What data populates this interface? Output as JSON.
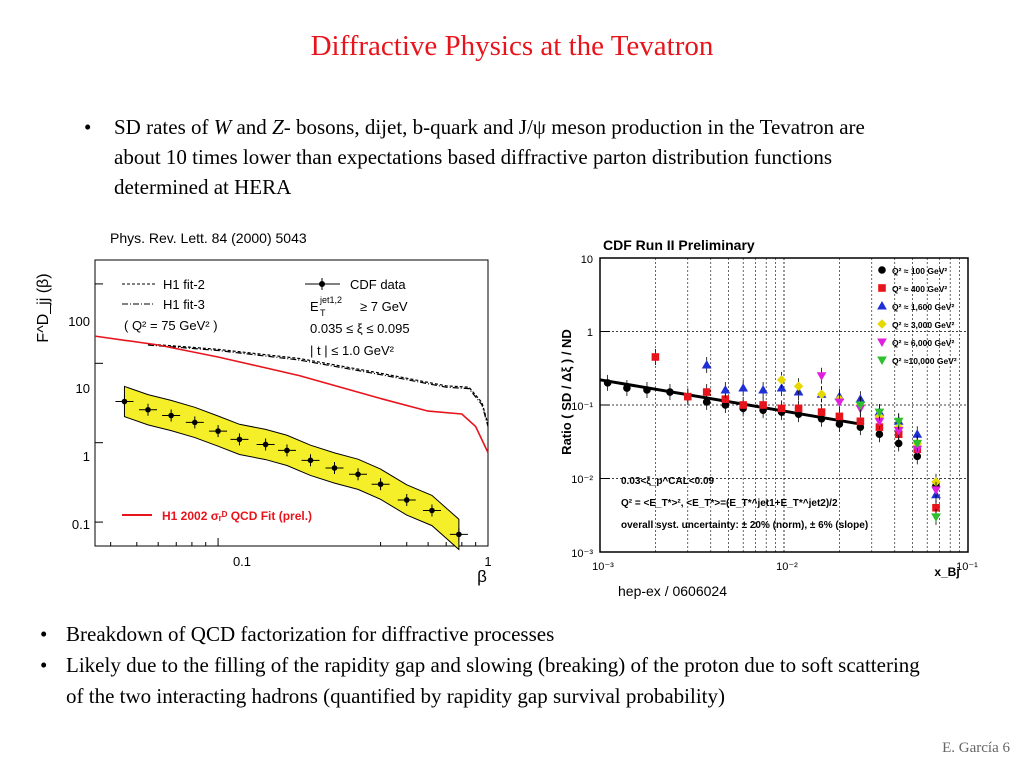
{
  "slide": {
    "title": "Diffractive Physics at the Tevatron",
    "bullet_top_1": {
      "pre": "SD rates of ",
      "w": "W",
      "mid": " and ",
      "z": "Z",
      "post": "- bosons, dijet, b-quark and J/ψ meson production in the Tevatron are about 10 times lower than expectations based diffractive parton distribution functions determined at HERA"
    },
    "citation_left": "Phys. Rev. Lett. 84 (2000) 5043",
    "citation_right": "hep-ex / 0606024",
    "bullets_bottom": [
      "Breakdown of QCD factorization for diffractive processes",
      "Likely due to the filling of the rapidity gap and slowing (breaking) of the proton due to soft scattering of the two interacting hadrons (quantified by  rapidity gap survival probability)"
    ],
    "footer": "E. García  6"
  },
  "chart_data": [
    {
      "type": "line",
      "ylabel": "F^D_jj (β)",
      "xlabel": "β",
      "xscale": "log",
      "yscale": "log",
      "xlim": [
        0.035,
        1
      ],
      "ylim": [
        0.05,
        200
      ],
      "xticks": [
        "0.1",
        "1"
      ],
      "yticks": [
        "0.1",
        "1",
        "10",
        "100"
      ],
      "legend": {
        "h1_fit2": "H1 fit-2",
        "h1_fit3": "H1 fit-3",
        "q2": "( Q² = 75 GeV² )",
        "cdf": "CDF data",
        "et_pre": "E",
        "et_sup": "jet1,2",
        "et_sub": "T",
        "et_cut": "≥ 7 GeV",
        "xi_cut": "0.035 ≤ ξ ≤ 0.095",
        "t_cut": "| t | ≤ 1.0 GeV²",
        "h1_2002": "H1 2002 σᵣᴰ QCD Fit (prel.)"
      },
      "series": [
        {
          "name": "H1 fit-2",
          "color": "#000000",
          "style": "dashed",
          "x": [
            0.055,
            0.1,
            0.2,
            0.4,
            0.7,
            0.85,
            0.95,
            1.0
          ],
          "y": [
            17.5,
            15,
            11.5,
            7.5,
            5.2,
            5.0,
            3.2,
            1.7
          ]
        },
        {
          "name": "H1 fit-3",
          "color": "#000000",
          "style": "dashdot",
          "x": [
            0.055,
            0.1,
            0.2,
            0.4,
            0.7,
            0.85,
            0.95,
            1.0
          ],
          "y": [
            17.0,
            14.5,
            11.0,
            7.2,
            5.0,
            4.8,
            3.0,
            1.6
          ]
        },
        {
          "name": "H1 2002 σᵣᴰ QCD Fit (prel.)",
          "color": "#e8141c",
          "style": "solid",
          "x": [
            0.035,
            0.06,
            0.1,
            0.2,
            0.4,
            0.6,
            0.8,
            0.9,
            1.0
          ],
          "y": [
            22,
            17,
            12,
            7.0,
            3.6,
            2.5,
            2.3,
            1.6,
            0.75
          ]
        },
        {
          "name": "CDF data",
          "color": "#000000",
          "style": "points",
          "x": [
            0.045,
            0.055,
            0.067,
            0.082,
            0.1,
            0.12,
            0.15,
            0.18,
            0.22,
            0.27,
            0.33,
            0.4,
            0.5,
            0.62,
            0.78
          ],
          "y": [
            3.3,
            2.6,
            2.2,
            1.8,
            1.4,
            1.1,
            0.95,
            0.8,
            0.6,
            0.48,
            0.4,
            0.3,
            0.19,
            0.14,
            0.07
          ]
        }
      ]
    },
    {
      "type": "scatter",
      "title": "CDF Run II Preliminary",
      "ylabel": "Ratio  ( SD /  Δξ ) / ND",
      "xlabel": "x_Bj",
      "xscale": "log",
      "yscale": "log",
      "xlim": [
        0.001,
        0.1
      ],
      "ylim": [
        0.001,
        10
      ],
      "xticks": [
        "10⁻³",
        "10⁻²",
        "10⁻¹"
      ],
      "yticks": [
        "10⁻³",
        "10⁻²",
        "10⁻¹",
        "1",
        "10"
      ],
      "annotations": [
        "0.03<ξ_p^CAL<0.09",
        "Q² = <E_T*>²,  <E_T*>=(E_T*^jet1+E_T*^jet2)/2",
        "overall syst. uncertainty: ± 20% (norm), ± 6% (slope)"
      ],
      "series": [
        {
          "name": "Q² ≈  100 GeV²",
          "color": "#000000",
          "marker": "circle",
          "x": [
            0.0011,
            0.0014,
            0.0018,
            0.0024,
            0.003,
            0.0038,
            0.0048,
            0.006,
            0.0077,
            0.0097,
            0.012,
            0.016,
            0.02,
            0.026,
            0.033,
            0.042,
            0.053,
            0.067
          ],
          "y": [
            0.2,
            0.17,
            0.16,
            0.15,
            0.13,
            0.11,
            0.1,
            0.09,
            0.085,
            0.08,
            0.075,
            0.065,
            0.055,
            0.05,
            0.04,
            0.03,
            0.02,
            0.008
          ]
        },
        {
          "name": "Q² ≈  400 GeV²",
          "color": "#e8141c",
          "marker": "square",
          "x": [
            0.002,
            0.003,
            0.0038,
            0.0048,
            0.006,
            0.0077,
            0.0097,
            0.012,
            0.016,
            0.02,
            0.026,
            0.033,
            0.042,
            0.053,
            0.067
          ],
          "y": [
            0.45,
            0.13,
            0.15,
            0.12,
            0.1,
            0.1,
            0.09,
            0.09,
            0.08,
            0.07,
            0.06,
            0.05,
            0.04,
            0.025,
            0.004
          ]
        },
        {
          "name": "Q² ≈ 1,600 GeV²",
          "color": "#1f2fd6",
          "marker": "triangle",
          "x": [
            0.0038,
            0.0048,
            0.006,
            0.0077,
            0.0097,
            0.012,
            0.016,
            0.02,
            0.026,
            0.033,
            0.042,
            0.053,
            0.067
          ],
          "y": [
            0.35,
            0.16,
            0.17,
            0.16,
            0.17,
            0.15,
            0.14,
            0.13,
            0.12,
            0.08,
            0.06,
            0.04,
            0.006
          ]
        },
        {
          "name": "Q² ≈ 3,000 GeV²",
          "color": "#e6d800",
          "marker": "diamond",
          "x": [
            0.0097,
            0.012,
            0.016,
            0.02,
            0.026,
            0.033,
            0.042,
            0.053,
            0.067
          ],
          "y": [
            0.22,
            0.18,
            0.14,
            0.12,
            0.1,
            0.07,
            0.05,
            0.03,
            0.009
          ]
        },
        {
          "name": "Q² ≈ 6,000 GeV²",
          "color": "#e020e0",
          "marker": "triangle-down",
          "x": [
            0.016,
            0.02,
            0.026,
            0.033,
            0.042,
            0.053,
            0.067
          ],
          "y": [
            0.25,
            0.11,
            0.09,
            0.06,
            0.045,
            0.025,
            0.007
          ]
        },
        {
          "name": "Q² ≈10,000 GeV²",
          "color": "#2fbf2f",
          "marker": "triangle-down",
          "x": [
            0.026,
            0.033,
            0.042,
            0.053,
            0.067
          ],
          "y": [
            0.1,
            0.08,
            0.06,
            0.03,
            0.003
          ]
        }
      ],
      "fit": {
        "x": [
          0.001,
          0.026
        ],
        "y": [
          0.22,
          0.055
        ]
      }
    }
  ]
}
